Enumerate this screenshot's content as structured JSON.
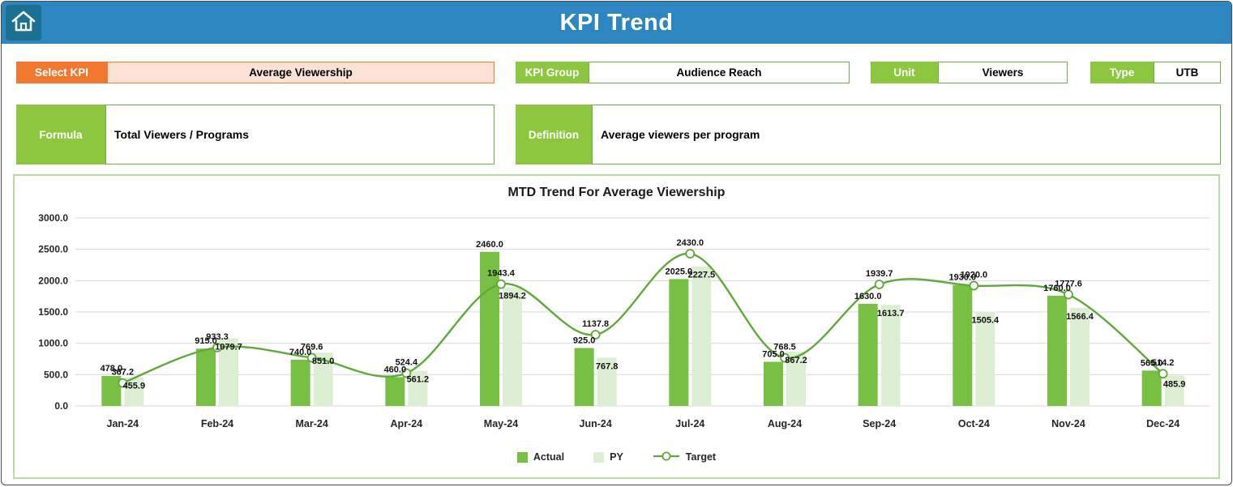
{
  "header": {
    "title": "KPI Trend"
  },
  "controls": {
    "select_kpi": {
      "label": "Select KPI",
      "value": "Average Viewership"
    },
    "kpi_group": {
      "label": "KPI Group",
      "value": "Audience Reach"
    },
    "unit": {
      "label": "Unit",
      "value": "Viewers"
    },
    "type": {
      "label": "Type",
      "value": "UTB"
    },
    "formula": {
      "label": "Formula",
      "value": "Total Viewers / Programs"
    },
    "definition": {
      "label": "Definition",
      "value": "Average viewers per program"
    }
  },
  "chart_data": {
    "type": "bar",
    "subtype": "grouped-bars-with-smooth-line",
    "title": "MTD Trend For Average Viewership",
    "categories": [
      "Jan-24",
      "Feb-24",
      "Mar-24",
      "Apr-24",
      "May-24",
      "Jun-24",
      "Jul-24",
      "Aug-24",
      "Sep-24",
      "Oct-24",
      "Nov-24",
      "Dec-24"
    ],
    "series": [
      {
        "name": "Actual",
        "type": "bar",
        "color": "#77C043",
        "values": [
          478.0,
          915.0,
          740.0,
          460.0,
          2460.0,
          925.0,
          2025.0,
          705.0,
          1630.0,
          1930.0,
          1760.0,
          565.0
        ]
      },
      {
        "name": "PY",
        "type": "bar",
        "color": "#DDEFD2",
        "values": [
          455.9,
          1079.7,
          851.0,
          561.2,
          1894.2,
          767.8,
          2227.5,
          867.2,
          1613.7,
          1505.4,
          1566.4,
          485.9
        ]
      },
      {
        "name": "Target",
        "type": "line",
        "color": "#61A83B",
        "marker": "circle-open",
        "values": [
          367.2,
          933.3,
          769.6,
          524.4,
          1943.4,
          1137.8,
          2430.0,
          768.5,
          1939.7,
          1920.0,
          1777.6,
          514.2
        ]
      }
    ],
    "ylim": [
      0,
      3000
    ],
    "ytick_step": 500,
    "ytick_labels": [
      "0.0",
      "500.0",
      "1000.0",
      "1500.0",
      "2000.0",
      "2500.0",
      "3000.0"
    ],
    "grid": true,
    "legend_position": "bottom",
    "data_labels": true
  },
  "colors": {
    "header_bg": "#2E86C1",
    "home_tile_bg": "#1A7191",
    "accent_orange": "#ED7D31",
    "accent_orange_fill": "#FBE2D5",
    "accent_green": "#8DC63F",
    "field_border_green": "#70AD47",
    "chart_border": "#B9DCA0",
    "gridline": "#D9D9D9"
  }
}
